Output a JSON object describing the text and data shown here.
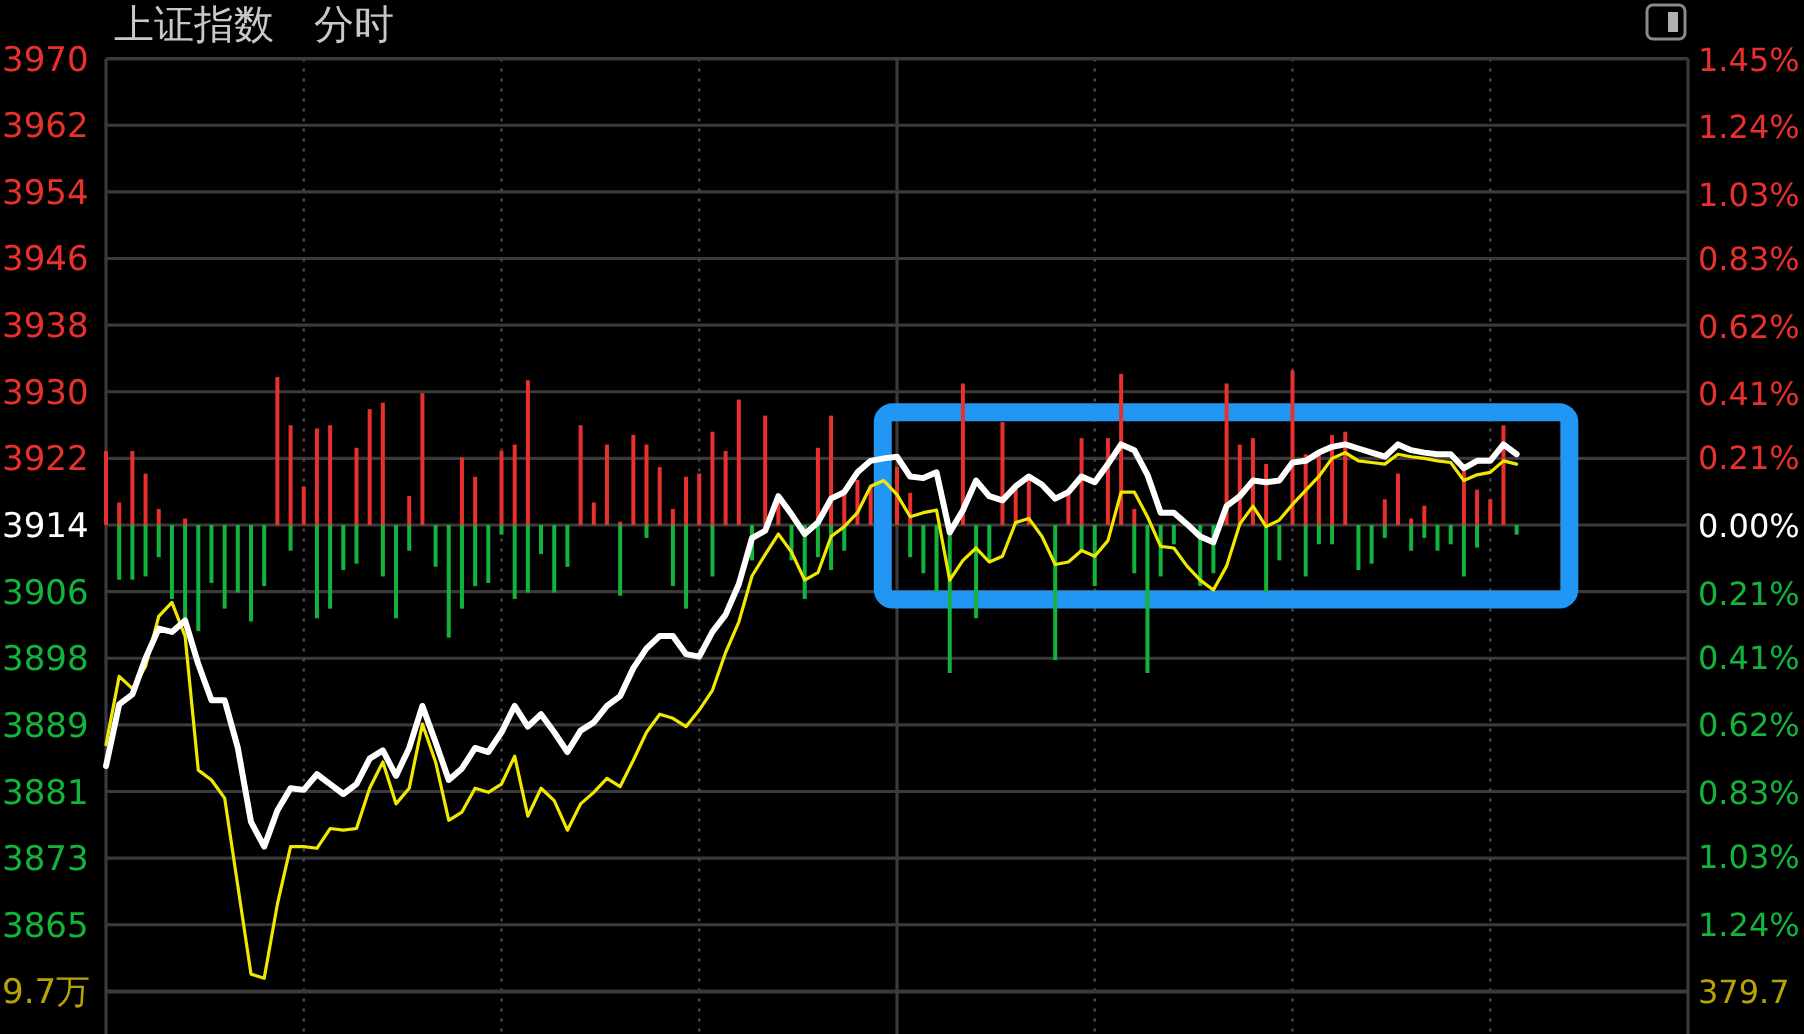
{
  "chart_data": {
    "type": "line",
    "title": "上证指数",
    "subtitle": "分时",
    "categories": [
      null,
      null,
      null,
      null,
      null,
      null,
      null,
      null,
      null,
      null,
      null,
      null,
      null,
      null,
      null,
      null,
      null,
      null,
      null,
      null,
      null,
      null,
      null,
      null,
      null,
      null,
      null,
      null,
      null,
      null,
      null,
      null,
      null,
      null,
      null,
      null,
      null,
      null,
      null,
      null,
      null,
      null,
      null,
      null,
      null,
      null,
      null,
      null,
      null,
      null,
      null,
      null,
      null,
      null,
      null,
      null,
      null,
      null,
      null,
      null,
      null,
      null,
      null,
      null,
      null,
      null,
      null,
      null,
      null,
      null,
      null,
      null,
      null,
      null,
      null,
      null,
      null,
      null,
      null,
      null,
      null,
      null,
      null,
      null,
      null,
      null,
      null,
      null,
      null,
      null,
      null,
      null,
      null,
      null,
      null,
      null,
      null,
      null,
      null,
      null,
      null,
      null,
      null,
      null,
      null,
      null,
      null,
      null,
      null,
      null,
      null,
      null,
      null,
      null,
      null,
      null,
      null,
      null,
      null,
      null,
      null
    ],
    "series": [
      {
        "type": "bar",
        "axis": "y2",
        "color": "#e8302c",
        "values": [
          0.23,
          0.07,
          0.23,
          0.16,
          0.05,
          null,
          0.02,
          null,
          null,
          null,
          null,
          null,
          null,
          0.46,
          0.31,
          0.12,
          0.3,
          0.31,
          null,
          0.24,
          0.36,
          0.38,
          null,
          0.09,
          0.41,
          null,
          null,
          0.21,
          0.15,
          null,
          0.23,
          0.25,
          0.45,
          null,
          null,
          null,
          0.31,
          0.07,
          0.25,
          0.01,
          0.28,
          0.25,
          0.18,
          0.05,
          0.15,
          0.16,
          0.29,
          0.23,
          0.39,
          null,
          0.34,
          0.08,
          null,
          null,
          0.24,
          0.34,
          0.1,
          0.14,
          0.12,
          null,
          0.18,
          0.1,
          null,
          null,
          null,
          0.44,
          null,
          null,
          0.32,
          0.13,
          0.14,
          null,
          null,
          0.11,
          0.27,
          null,
          0.27,
          0.47,
          0.05,
          null,
          null,
          null,
          null,
          null,
          null,
          0.44,
          0.25,
          0.27,
          0.19,
          null,
          0.48,
          0.22,
          0.22,
          0.28,
          0.29,
          null,
          null,
          0.08,
          0.16,
          0.02,
          0.06,
          null,
          null,
          0.17,
          0.11,
          0.08,
          0.31,
          null,
          null,
          null,
          null,
          null,
          null,
          null,
          null,
          null,
          null,
          null,
          null,
          null,
          null
        ]
      },
      {
        "type": "bar",
        "axis": "y2",
        "color": "#12b43c",
        "values": [
          null,
          -0.17,
          -0.17,
          -0.16,
          -0.1,
          -0.23,
          -0.3,
          -0.33,
          -0.18,
          -0.26,
          -0.21,
          -0.3,
          -0.19,
          null,
          -0.08,
          null,
          -0.29,
          -0.26,
          -0.14,
          -0.12,
          null,
          -0.16,
          -0.29,
          -0.08,
          null,
          -0.13,
          -0.35,
          -0.26,
          -0.19,
          -0.18,
          -0.03,
          -0.23,
          -0.21,
          -0.09,
          -0.21,
          -0.13,
          null,
          null,
          null,
          -0.22,
          null,
          -0.04,
          null,
          -0.19,
          -0.26,
          null,
          -0.16,
          null,
          null,
          -0.11,
          null,
          null,
          -0.11,
          -0.23,
          -0.1,
          -0.14,
          -0.08,
          null,
          null,
          null,
          null,
          -0.1,
          -0.15,
          -0.21,
          -0.46,
          null,
          -0.29,
          -0.11,
          null,
          null,
          null,
          null,
          -0.42,
          null,
          -0.08,
          -0.19,
          null,
          null,
          -0.15,
          -0.46,
          -0.16,
          -0.06,
          null,
          -0.19,
          -0.15,
          null,
          null,
          null,
          -0.21,
          -0.11,
          null,
          -0.16,
          -0.06,
          -0.06,
          null,
          -0.14,
          -0.12,
          -0.04,
          null,
          -0.08,
          -0.04,
          -0.08,
          -0.06,
          -0.16,
          -0.07,
          null,
          null,
          -0.03,
          null,
          null,
          null,
          null,
          null,
          null,
          null,
          null,
          null,
          null,
          null,
          null,
          null
        ]
      },
      {
        "color": "#f0e800",
        "values": [
          3887.1,
          3895.4,
          3893.9,
          3896.6,
          3902.7,
          3904.4,
          3900.3,
          3884.0,
          3882.8,
          3880.6,
          3869.9,
          3859.2,
          3858.7,
          3867.7,
          3874.7,
          3874.7,
          3874.5,
          3876.9,
          3876.7,
          3876.9,
          3881.8,
          3885.0,
          3879.9,
          3881.8,
          3889.6,
          3885.0,
          3877.9,
          3878.9,
          3881.8,
          3881.3,
          3882.3,
          3885.7,
          3878.4,
          3881.8,
          3880.3,
          3876.7,
          3879.9,
          3881.3,
          3883.0,
          3882.0,
          3885.2,
          3888.6,
          3890.8,
          3890.3,
          3889.3,
          3891.3,
          3893.7,
          3898.3,
          3902.0,
          3907.6,
          3910.2,
          3912.7,
          3910.5,
          3907.1,
          3908.0,
          3912.4,
          3913.6,
          3915.3,
          3918.5,
          3919.2,
          3917.5,
          3914.8,
          3915.3,
          3915.6,
          3907.1,
          3909.5,
          3911.0,
          3909.3,
          3910.0,
          3914.1,
          3914.6,
          3912.4,
          3909.0,
          3909.3,
          3910.7,
          3910.0,
          3911.9,
          3917.8,
          3917.8,
          3914.8,
          3911.2,
          3911.0,
          3908.8,
          3907.1,
          3905.9,
          3908.8,
          3913.9,
          3916.1,
          3913.6,
          3914.4,
          3916.3,
          3918.0,
          3919.7,
          3921.9,
          3922.6,
          3921.6,
          3921.4,
          3921.2,
          3922.4,
          3922.1,
          3921.9,
          3921.6,
          3921.4,
          3919.2,
          3919.9,
          3920.2,
          3921.6,
          3921.2,
          null,
          null,
          null,
          null,
          null,
          null,
          null,
          null,
          null,
          null,
          null,
          null,
          null
        ]
      },
      {
        "color": "#ffffff",
        "values": [
          3884.5,
          3892.0,
          3893.2,
          3897.6,
          3901.2,
          3900.8,
          3902.2,
          3896.9,
          3892.5,
          3892.5,
          3886.7,
          3877.7,
          3874.7,
          3879.1,
          3881.8,
          3881.6,
          3883.5,
          3882.3,
          3881.1,
          3882.3,
          3885.4,
          3886.4,
          3883.3,
          3886.7,
          3891.8,
          3887.4,
          3882.8,
          3884.2,
          3886.7,
          3886.2,
          3888.6,
          3891.8,
          3889.3,
          3890.8,
          3888.6,
          3886.2,
          3888.8,
          3889.8,
          3891.8,
          3893.0,
          3896.4,
          3898.8,
          3900.3,
          3900.3,
          3898.1,
          3897.8,
          3900.8,
          3902.9,
          3906.6,
          3912.2,
          3913.1,
          3917.3,
          3915.1,
          3912.7,
          3914.1,
          3917.0,
          3917.8,
          3920.2,
          3921.6,
          3921.9,
          3922.1,
          3919.7,
          3919.5,
          3920.2,
          3912.9,
          3915.6,
          3919.2,
          3917.3,
          3916.8,
          3918.5,
          3919.7,
          3918.7,
          3917.0,
          3917.8,
          3919.7,
          3919.0,
          3921.2,
          3923.6,
          3922.9,
          3919.9,
          3915.3,
          3915.3,
          3913.9,
          3912.4,
          3911.7,
          3916.1,
          3917.3,
          3919.2,
          3919.0,
          3919.2,
          3921.4,
          3921.6,
          3922.6,
          3923.3,
          3923.6,
          3923.1,
          3922.6,
          3922.1,
          3923.6,
          3922.9,
          3922.6,
          3922.4,
          3922.4,
          3920.7,
          3921.6,
          3921.6,
          3923.6,
          3922.4,
          null,
          null,
          null,
          null,
          null,
          null,
          null,
          null,
          null,
          null,
          null,
          null,
          null
        ]
      }
    ],
    "ylim": [
      3857.1,
      3970.5
    ],
    "yticks": [
      {
        "value": 3970.5,
        "label": "3970"
      },
      {
        "value": 3962.4,
        "label": "3962"
      },
      {
        "value": 3954.3,
        "label": "3954"
      },
      {
        "value": 3946.2,
        "label": "3946"
      },
      {
        "value": 3938.1,
        "label": "3938"
      },
      3930,
      {
        "value": 3921.9,
        "label": "3922"
      },
      {
        "value": 3913.8,
        "label": "3914"
      },
      {
        "value": 3905.7,
        "label": "3906"
      },
      {
        "value": 3897.6,
        "label": "3898"
      },
      {
        "value": 3889.5,
        "label": "3889"
      },
      {
        "value": 3881.4,
        "label": "3881"
      },
      {
        "value": 3873.3,
        "label": "3873"
      },
      {
        "value": 3865.2,
        "label": "3865"
      }
    ],
    "y2lim": [
      -1.45,
      1.45
    ],
    "y2ticks": [
      {
        "value": 1.45,
        "label": "1.45%"
      },
      {
        "value": 1.24,
        "label": "1.24%"
      },
      {
        "value": 1.03,
        "label": "1.03%"
      },
      {
        "value": 0.83,
        "label": "0.83%"
      },
      {
        "value": 0.62,
        "label": "0.62%"
      },
      {
        "value": 0.41,
        "label": "0.41%"
      },
      {
        "value": 0.21,
        "label": "0.21%"
      },
      {
        "value": 0,
        "label": "0.00%"
      },
      {
        "value": -0.21,
        "label": "0.21%"
      },
      {
        "value": -0.41,
        "label": "0.41%"
      },
      {
        "value": -0.62,
        "label": "0.62%"
      },
      {
        "value": -0.83,
        "label": "0.83%"
      },
      {
        "value": -1.03,
        "label": "1.03%"
      },
      {
        "value": -1.24,
        "label": "1.24%"
      }
    ],
    "grid": true,
    "annotations": [
      "9.7万",
      "379.7"
    ]
  }
}
